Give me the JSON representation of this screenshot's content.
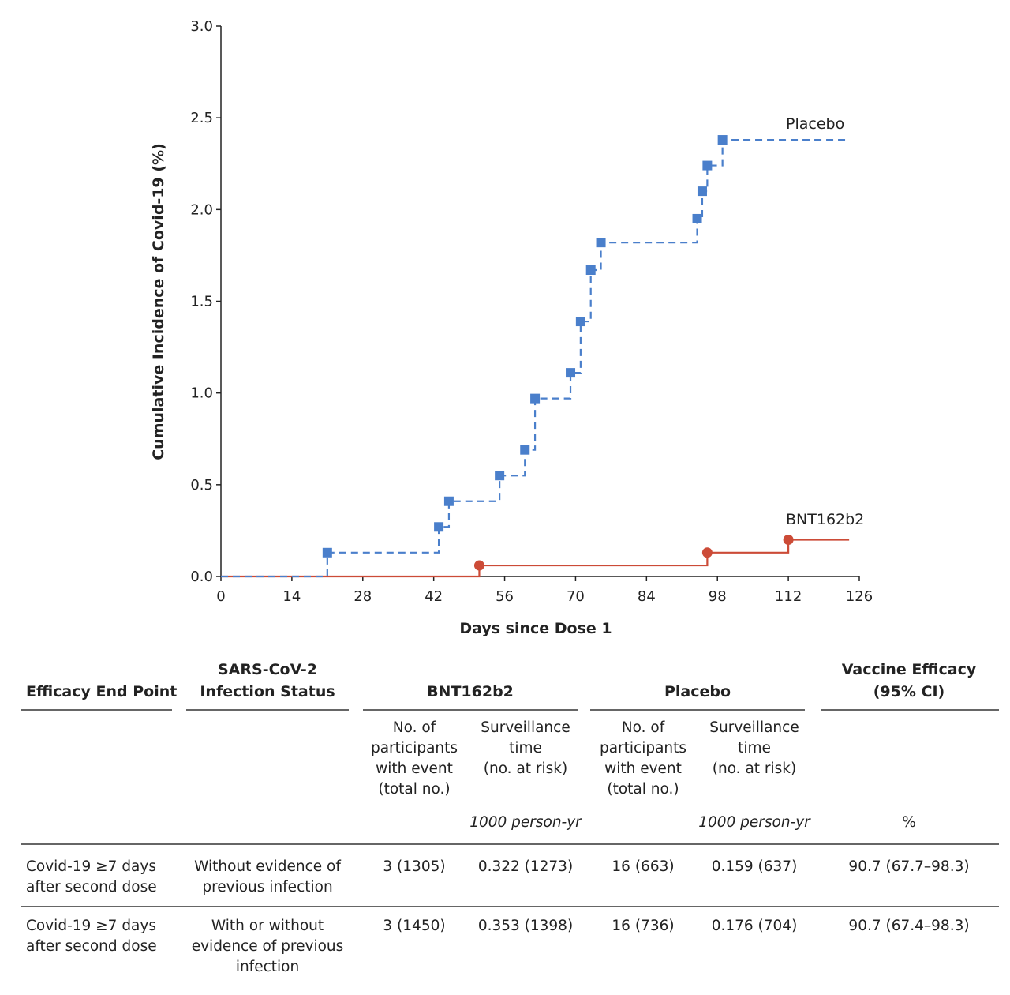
{
  "chart_data": {
    "type": "line",
    "subtype": "step",
    "xlabel": "Days since Dose 1",
    "ylabel": "Cumulative Incidence of Covid-19 (%)",
    "xlim": [
      0,
      126
    ],
    "ylim": [
      0,
      3.0
    ],
    "xticks": [
      "0",
      "14",
      "28",
      "42",
      "56",
      "70",
      "84",
      "98",
      "112",
      "126"
    ],
    "yticks": [
      "0.0",
      "0.5",
      "1.0",
      "1.5",
      "2.0",
      "2.5",
      "3.0"
    ],
    "grid": false,
    "series": [
      {
        "name": "Placebo",
        "color": "#4a7fcb",
        "style": "dashed",
        "marker": "square",
        "end_day": 124,
        "points": [
          [
            21,
            0.13
          ],
          [
            43,
            0.27
          ],
          [
            45,
            0.41
          ],
          [
            55,
            0.55
          ],
          [
            60,
            0.69
          ],
          [
            62,
            0.97
          ],
          [
            69,
            1.11
          ],
          [
            71,
            1.39
          ],
          [
            73,
            1.67
          ],
          [
            75,
            1.82
          ],
          [
            94,
            1.95
          ],
          [
            95,
            2.1
          ],
          [
            96,
            2.24
          ],
          [
            99,
            2.38
          ]
        ]
      },
      {
        "name": "BNT162b2",
        "color": "#cc4b37",
        "style": "solid",
        "marker": "circle",
        "end_day": 124,
        "points": [
          [
            51,
            0.06
          ],
          [
            96,
            0.13
          ],
          [
            112,
            0.2
          ]
        ]
      }
    ]
  },
  "table": {
    "headers": {
      "endpoint": "Efficacy End Point",
      "status": "SARS-CoV-2\nInfection Status",
      "bnt": "BNT162b2",
      "placebo": "Placebo",
      "ve": "Vaccine Efficacy\n(95% CI)"
    },
    "sub": {
      "participants": "No. of\nparticipants\nwith event\n(total no.)",
      "surveillance": "Surveillance\ntime\n(no. at risk)",
      "unit_time": "1000 person-yr",
      "unit_ve": "%"
    },
    "rows": [
      {
        "endpoint": "Covid-19 ≥7 days\nafter second dose",
        "status": "Without evidence of\nprevious infection",
        "bnt_n": "3 (1305)",
        "bnt_t": "0.322 (1273)",
        "pl_n": "16 (663)",
        "pl_t": "0.159 (637)",
        "ve": "90.7 (67.7–98.3)"
      },
      {
        "endpoint": "Covid-19 ≥7 days\nafter second dose",
        "status": "With or without\nevidence of previous\ninfection",
        "bnt_n": "3 (1450)",
        "bnt_t": "0.353 (1398)",
        "pl_n": "16 (736)",
        "pl_t": "0.176 (704)",
        "ve": "90.7 (67.4–98.3)"
      }
    ]
  }
}
